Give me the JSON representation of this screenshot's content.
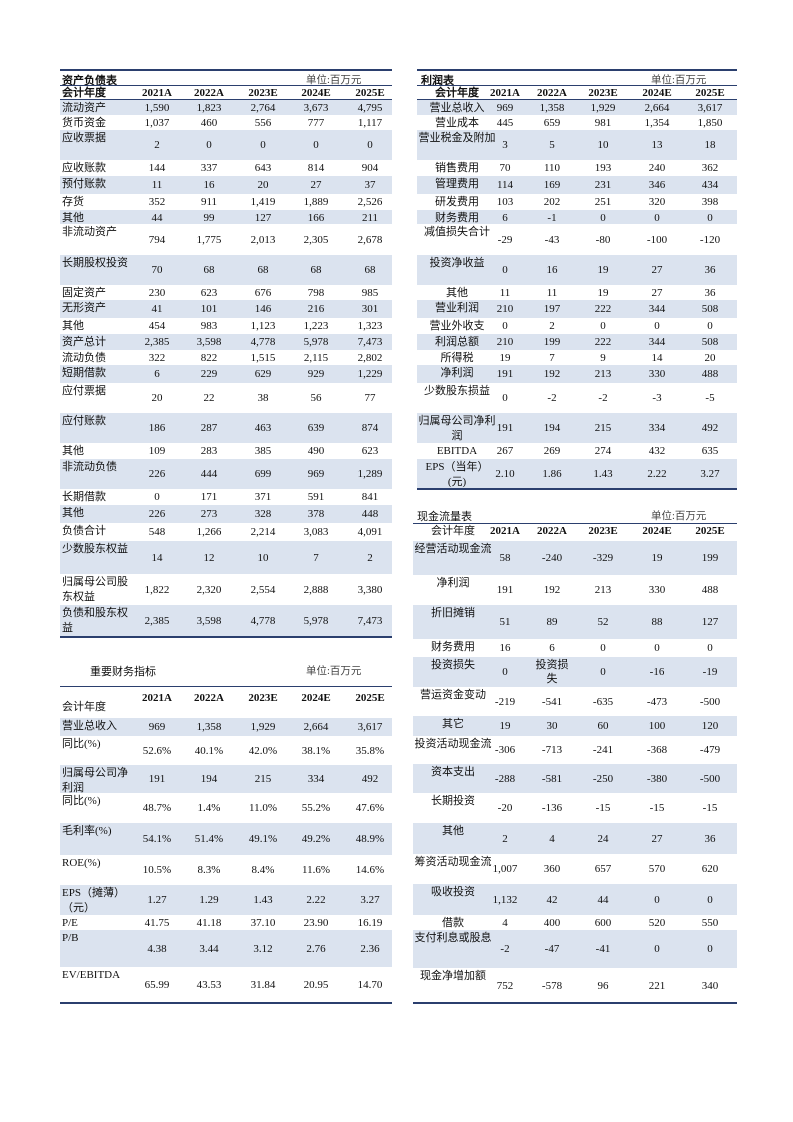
{
  "years": [
    "2021A",
    "2022A",
    "2023E",
    "2024E",
    "2025E"
  ],
  "unit": "单位:百万元",
  "header_label": "会计年度",
  "balance_sheet": {
    "title": "资产负债表",
    "rows": [
      {
        "label": "流动资产",
        "values": [
          "1,590",
          "1,823",
          "2,764",
          "3,673",
          "4,795"
        ]
      },
      {
        "label": "货币资金",
        "values": [
          "1,037",
          "460",
          "556",
          "777",
          "1,117"
        ]
      },
      {
        "label": "应收票据",
        "values": [
          "2",
          "0",
          "0",
          "0",
          "0"
        ]
      },
      {
        "label": "应收账款",
        "values": [
          "144",
          "337",
          "643",
          "814",
          "904"
        ]
      },
      {
        "label": "预付账款",
        "values": [
          "11",
          "16",
          "20",
          "27",
          "37"
        ]
      },
      {
        "label": "存货",
        "values": [
          "352",
          "911",
          "1,419",
          "1,889",
          "2,526"
        ]
      },
      {
        "label": "其他",
        "values": [
          "44",
          "99",
          "127",
          "166",
          "211"
        ]
      },
      {
        "label": "非流动资产",
        "values": [
          "794",
          "1,775",
          "2,013",
          "2,305",
          "2,678"
        ]
      },
      {
        "label": "长期股权投资",
        "values": [
          "70",
          "68",
          "68",
          "68",
          "68"
        ]
      },
      {
        "label": "固定资产",
        "values": [
          "230",
          "623",
          "676",
          "798",
          "985"
        ]
      },
      {
        "label": "无形资产",
        "values": [
          "41",
          "101",
          "146",
          "216",
          "301"
        ]
      },
      {
        "label": "其他",
        "values": [
          "454",
          "983",
          "1,123",
          "1,223",
          "1,323"
        ]
      },
      {
        "label": "资产总计",
        "values": [
          "2,385",
          "3,598",
          "4,778",
          "5,978",
          "7,473"
        ]
      },
      {
        "label": "流动负债",
        "values": [
          "322",
          "822",
          "1,515",
          "2,115",
          "2,802"
        ]
      },
      {
        "label": "短期借款",
        "values": [
          "6",
          "229",
          "629",
          "929",
          "1,229"
        ]
      },
      {
        "label": "应付票据",
        "values": [
          "20",
          "22",
          "38",
          "56",
          "77"
        ]
      },
      {
        "label": "应付账款",
        "values": [
          "186",
          "287",
          "463",
          "639",
          "874"
        ]
      },
      {
        "label": "其他",
        "values": [
          "109",
          "283",
          "385",
          "490",
          "623"
        ]
      },
      {
        "label": "非流动负债",
        "values": [
          "226",
          "444",
          "699",
          "969",
          "1,289"
        ]
      },
      {
        "label": "长期借款",
        "values": [
          "0",
          "171",
          "371",
          "591",
          "841"
        ]
      },
      {
        "label": "其他",
        "values": [
          "226",
          "273",
          "328",
          "378",
          "448"
        ]
      },
      {
        "label": "负债合计",
        "values": [
          "548",
          "1,266",
          "2,214",
          "3,083",
          "4,091"
        ]
      },
      {
        "label": "少数股东权益",
        "values": [
          "14",
          "12",
          "10",
          "7",
          "2"
        ]
      },
      {
        "label": "归属母公司股东权益",
        "values": [
          "1,822",
          "2,320",
          "2,554",
          "2,888",
          "3,380"
        ]
      },
      {
        "label": "负债和股东权益",
        "values": [
          "2,385",
          "3,598",
          "4,778",
          "5,978",
          "7,473"
        ]
      }
    ]
  },
  "income_statement": {
    "title": "利润表",
    "rows": [
      {
        "label": "营业总收入",
        "values": [
          "969",
          "1,358",
          "1,929",
          "2,664",
          "3,617"
        ]
      },
      {
        "label": "营业成本",
        "values": [
          "445",
          "659",
          "981",
          "1,354",
          "1,850"
        ]
      },
      {
        "label": "营业税金及附加",
        "values": [
          "3",
          "5",
          "10",
          "13",
          "18"
        ]
      },
      {
        "label": "销售费用",
        "values": [
          "70",
          "110",
          "193",
          "240",
          "362"
        ]
      },
      {
        "label": "管理费用",
        "values": [
          "114",
          "169",
          "231",
          "346",
          "434"
        ]
      },
      {
        "label": "研发费用",
        "values": [
          "103",
          "202",
          "251",
          "320",
          "398"
        ]
      },
      {
        "label": "财务费用",
        "values": [
          "6",
          "-1",
          "0",
          "0",
          "0"
        ]
      },
      {
        "label": "减值损失合计",
        "values": [
          "-29",
          "-43",
          "-80",
          "-100",
          "-120"
        ]
      },
      {
        "label": "投资净收益",
        "values": [
          "0",
          "16",
          "19",
          "27",
          "36"
        ]
      },
      {
        "label": "其他",
        "values": [
          "11",
          "11",
          "19",
          "27",
          "36"
        ]
      },
      {
        "label": "营业利润",
        "values": [
          "210",
          "197",
          "222",
          "344",
          "508"
        ]
      },
      {
        "label": "营业外收支",
        "values": [
          "0",
          "2",
          "0",
          "0",
          "0"
        ]
      },
      {
        "label": "利润总额",
        "values": [
          "210",
          "199",
          "222",
          "344",
          "508"
        ]
      },
      {
        "label": "所得税",
        "values": [
          "19",
          "7",
          "9",
          "14",
          "20"
        ]
      },
      {
        "label": "净利润",
        "values": [
          "191",
          "192",
          "213",
          "330",
          "488"
        ]
      },
      {
        "label": "少数股东损益",
        "values": [
          "0",
          "-2",
          "-2",
          "-3",
          "-5"
        ]
      },
      {
        "label": "归属母公司净利润",
        "values": [
          "191",
          "194",
          "215",
          "334",
          "492"
        ]
      },
      {
        "label": "EBITDA",
        "values": [
          "267",
          "269",
          "274",
          "432",
          "635"
        ]
      },
      {
        "label": "EPS（当年）(元)",
        "values": [
          "2.10",
          "1.86",
          "1.43",
          "2.22",
          "3.27"
        ]
      }
    ]
  },
  "key_indicators": {
    "title": "重要财务指标",
    "rows": [
      {
        "label": "营业总收入",
        "values": [
          "969",
          "1,358",
          "1,929",
          "2,664",
          "3,617"
        ]
      },
      {
        "label": "同比(%)",
        "values": [
          "52.6%",
          "40.1%",
          "42.0%",
          "38.1%",
          "35.8%"
        ]
      },
      {
        "label": "归属母公司净利润",
        "values": [
          "191",
          "194",
          "215",
          "334",
          "492"
        ]
      },
      {
        "label": "同比(%)",
        "values": [
          "48.7%",
          "1.4%",
          "11.0%",
          "55.2%",
          "47.6%"
        ]
      },
      {
        "label": "毛利率(%)",
        "values": [
          "54.1%",
          "51.4%",
          "49.1%",
          "49.2%",
          "48.9%"
        ]
      },
      {
        "label": "ROE(%)",
        "values": [
          "10.5%",
          "8.3%",
          "8.4%",
          "11.6%",
          "14.6%"
        ]
      },
      {
        "label": "EPS（摊薄）（元）",
        "values": [
          "1.27",
          "1.29",
          "1.43",
          "2.22",
          "3.27"
        ]
      },
      {
        "label": "P/E",
        "values": [
          "41.75",
          "41.18",
          "37.10",
          "23.90",
          "16.19"
        ]
      },
      {
        "label": "P/B",
        "values": [
          "4.38",
          "3.44",
          "3.12",
          "2.76",
          "2.36"
        ]
      },
      {
        "label": "EV/EBITDA",
        "values": [
          "65.99",
          "43.53",
          "31.84",
          "20.95",
          "14.70"
        ]
      }
    ]
  },
  "cash_flow": {
    "title": "现金流量表",
    "rows": [
      {
        "label": "经营活动现金流",
        "values": [
          "58",
          "-240",
          "-329",
          "19",
          "199"
        ]
      },
      {
        "label": "净利润",
        "values": [
          "191",
          "192",
          "213",
          "330",
          "488"
        ]
      },
      {
        "label": "折旧摊销",
        "values": [
          "51",
          "89",
          "52",
          "88",
          "127"
        ]
      },
      {
        "label": "财务费用",
        "values": [
          "16",
          "6",
          "0",
          "0",
          "0"
        ]
      },
      {
        "label": "投资损失",
        "values": [
          "0",
          "投资损失",
          "0",
          "-16",
          "-19"
        ]
      },
      {
        "label": "营运资金变动",
        "values": [
          "-219",
          "-541",
          "-635",
          "-473",
          "-500"
        ]
      },
      {
        "label": "其它",
        "values": [
          "19",
          "30",
          "60",
          "100",
          "120"
        ]
      },
      {
        "label": "投资活动现金流",
        "values": [
          "-306",
          "-713",
          "-241",
          "-368",
          "-479"
        ]
      },
      {
        "label": "资本支出",
        "values": [
          "-288",
          "-581",
          "-250",
          "-380",
          "-500"
        ]
      },
      {
        "label": "长期投资",
        "values": [
          "-20",
          "-136",
          "-15",
          "-15",
          "-15"
        ]
      },
      {
        "label": "其他",
        "values": [
          "2",
          "4",
          "24",
          "27",
          "36"
        ]
      },
      {
        "label": "筹资活动现金流",
        "values": [
          "1,007",
          "360",
          "657",
          "570",
          "620"
        ]
      },
      {
        "label": "吸收投资",
        "values": [
          "1,132",
          "42",
          "44",
          "0",
          "0"
        ]
      },
      {
        "label": "借款",
        "values": [
          "4",
          "400",
          "600",
          "520",
          "550"
        ]
      },
      {
        "label": "支付利息或股息",
        "values": [
          "-2",
          "-47",
          "-41",
          "0",
          "0"
        ]
      },
      {
        "label": "现金净增加额",
        "values": [
          "752",
          "-578",
          "96",
          "221",
          "340"
        ]
      }
    ]
  },
  "colors": {
    "rule": "#2b3f6e",
    "shade": "#dbe3ef"
  }
}
